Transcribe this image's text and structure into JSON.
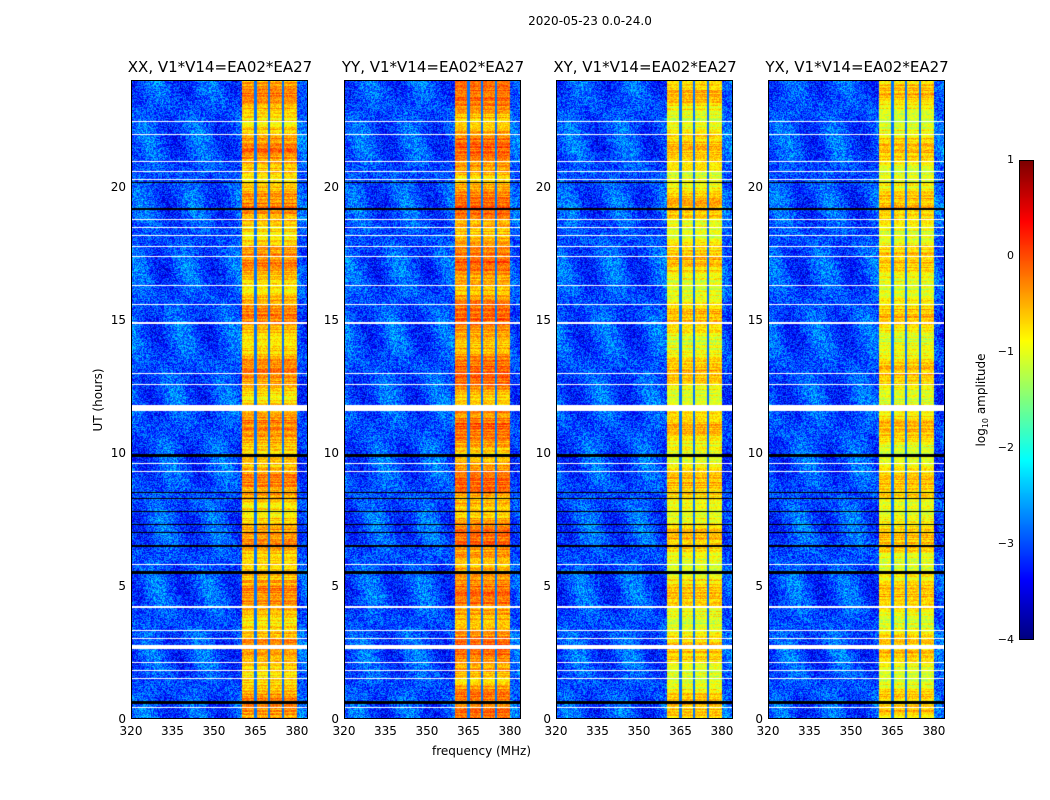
{
  "chart_data": {
    "type": "heatmap",
    "suptitle": "2020-05-23 0.0-24.0",
    "xlabel": "frequency (MHz)",
    "ylabel": "UT (hours)",
    "xlim": [
      320,
      384
    ],
    "ylim": [
      0,
      24
    ],
    "xticks": [
      "320",
      "335",
      "350",
      "365",
      "380"
    ],
    "yticks": [
      "0",
      "5",
      "10",
      "15",
      "20"
    ],
    "panels": [
      {
        "title": "XX, V1*V14=EA02*EA27",
        "band_level": -0.5
      },
      {
        "title": "YY, V1*V14=EA02*EA27",
        "band_level": -0.35
      },
      {
        "title": "XY, V1*V14=EA02*EA27",
        "band_level": -0.8
      },
      {
        "title": "YX, V1*V14=EA02*EA27",
        "band_level": -0.8
      }
    ],
    "background_level": -3.0,
    "bright_band_mhz": [
      360,
      380
    ],
    "channel_edges_mhz": [
      365,
      370,
      375
    ],
    "flagged_hours_white": [
      0.4,
      1.5,
      1.8,
      2.1,
      2.7,
      3.0,
      3.3,
      4.2,
      5.8,
      9.3,
      9.6,
      11.7,
      12.6,
      13.0,
      14.9,
      15.6,
      16.3,
      17.4,
      17.8,
      18.2,
      18.5,
      18.8,
      20.3,
      20.6,
      21.0,
      22.0,
      22.5
    ],
    "flagged_hours_black": [
      0.6,
      5.5,
      6.5,
      7.0,
      7.3,
      7.8,
      8.3,
      8.5,
      9.9,
      19.2,
      20.2
    ],
    "colorbar": {
      "label": "log10 amplitude",
      "range": [
        -4,
        1
      ],
      "ticks": [
        "1",
        "0",
        "−1",
        "−2",
        "−3",
        "−4"
      ],
      "colormap": "jet"
    }
  }
}
